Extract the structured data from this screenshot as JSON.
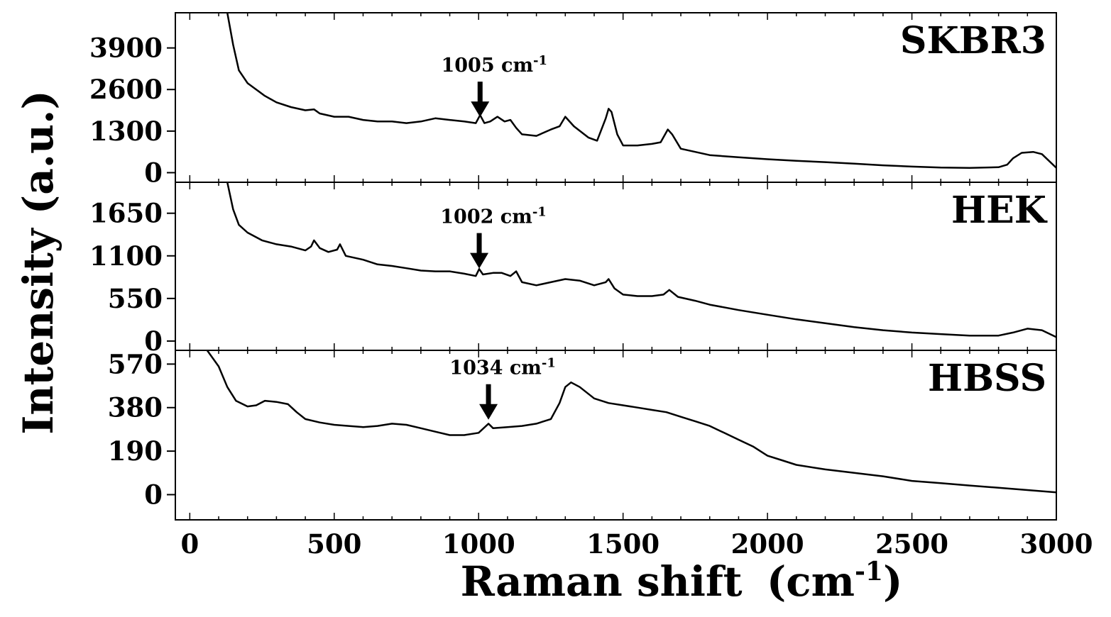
{
  "chart_data": {
    "type": "line",
    "xlabel": "Raman shift",
    "xlabel_unit_base": "(cm",
    "xlabel_unit_sup": "-1",
    "xlabel_unit_close": ")",
    "ylabel": "Intensity (a.u.)",
    "xlim": [
      -50,
      3000
    ],
    "xticks": [
      0,
      500,
      1000,
      1500,
      2000,
      2500,
      3000
    ],
    "line_color": "#000000",
    "grid": false,
    "legend": "none",
    "panels": [
      {
        "name": "SKBR3",
        "ylim": [
          -300,
          5000
        ],
        "yticks": [
          0,
          1300,
          2600,
          3900
        ],
        "annotation": {
          "x": 1005,
          "y": 1650,
          "text": "1005 cm",
          "sup": "-1"
        },
        "series": [
          {
            "x": 130,
            "y": 5000
          },
          {
            "x": 150,
            "y": 4000
          },
          {
            "x": 170,
            "y": 3200
          },
          {
            "x": 200,
            "y": 2800
          },
          {
            "x": 230,
            "y": 2600
          },
          {
            "x": 260,
            "y": 2400
          },
          {
            "x": 300,
            "y": 2200
          },
          {
            "x": 350,
            "y": 2050
          },
          {
            "x": 400,
            "y": 1950
          },
          {
            "x": 430,
            "y": 1980
          },
          {
            "x": 450,
            "y": 1850
          },
          {
            "x": 500,
            "y": 1750
          },
          {
            "x": 550,
            "y": 1750
          },
          {
            "x": 600,
            "y": 1650
          },
          {
            "x": 650,
            "y": 1600
          },
          {
            "x": 700,
            "y": 1600
          },
          {
            "x": 750,
            "y": 1550
          },
          {
            "x": 800,
            "y": 1600
          },
          {
            "x": 850,
            "y": 1700
          },
          {
            "x": 900,
            "y": 1650
          },
          {
            "x": 950,
            "y": 1600
          },
          {
            "x": 990,
            "y": 1550
          },
          {
            "x": 1005,
            "y": 1800
          },
          {
            "x": 1020,
            "y": 1550
          },
          {
            "x": 1040,
            "y": 1600
          },
          {
            "x": 1065,
            "y": 1750
          },
          {
            "x": 1090,
            "y": 1600
          },
          {
            "x": 1110,
            "y": 1650
          },
          {
            "x": 1130,
            "y": 1400
          },
          {
            "x": 1150,
            "y": 1200
          },
          {
            "x": 1200,
            "y": 1150
          },
          {
            "x": 1250,
            "y": 1350
          },
          {
            "x": 1280,
            "y": 1450
          },
          {
            "x": 1300,
            "y": 1750
          },
          {
            "x": 1330,
            "y": 1450
          },
          {
            "x": 1380,
            "y": 1100
          },
          {
            "x": 1410,
            "y": 1000
          },
          {
            "x": 1440,
            "y": 1700
          },
          {
            "x": 1450,
            "y": 2000
          },
          {
            "x": 1460,
            "y": 1900
          },
          {
            "x": 1480,
            "y": 1200
          },
          {
            "x": 1500,
            "y": 850
          },
          {
            "x": 1550,
            "y": 850
          },
          {
            "x": 1600,
            "y": 900
          },
          {
            "x": 1630,
            "y": 950
          },
          {
            "x": 1655,
            "y": 1350
          },
          {
            "x": 1670,
            "y": 1200
          },
          {
            "x": 1700,
            "y": 750
          },
          {
            "x": 1750,
            "y": 650
          },
          {
            "x": 1800,
            "y": 550
          },
          {
            "x": 1900,
            "y": 480
          },
          {
            "x": 2000,
            "y": 420
          },
          {
            "x": 2100,
            "y": 370
          },
          {
            "x": 2200,
            "y": 330
          },
          {
            "x": 2300,
            "y": 280
          },
          {
            "x": 2400,
            "y": 230
          },
          {
            "x": 2500,
            "y": 190
          },
          {
            "x": 2600,
            "y": 160
          },
          {
            "x": 2700,
            "y": 150
          },
          {
            "x": 2800,
            "y": 170
          },
          {
            "x": 2830,
            "y": 250
          },
          {
            "x": 2850,
            "y": 450
          },
          {
            "x": 2880,
            "y": 620
          },
          {
            "x": 2920,
            "y": 650
          },
          {
            "x": 2950,
            "y": 580
          },
          {
            "x": 3000,
            "y": 150
          }
        ]
      },
      {
        "name": "HEK",
        "ylim": [
          -120,
          2050
        ],
        "yticks": [
          0,
          550,
          1100,
          1650
        ],
        "annotation": {
          "x": 1002,
          "y": 900,
          "text": "1002 cm",
          "sup": "-1"
        },
        "series": [
          {
            "x": 130,
            "y": 2050
          },
          {
            "x": 150,
            "y": 1700
          },
          {
            "x": 170,
            "y": 1500
          },
          {
            "x": 200,
            "y": 1400
          },
          {
            "x": 250,
            "y": 1300
          },
          {
            "x": 300,
            "y": 1250
          },
          {
            "x": 350,
            "y": 1220
          },
          {
            "x": 400,
            "y": 1170
          },
          {
            "x": 420,
            "y": 1220
          },
          {
            "x": 430,
            "y": 1300
          },
          {
            "x": 450,
            "y": 1200
          },
          {
            "x": 480,
            "y": 1150
          },
          {
            "x": 510,
            "y": 1180
          },
          {
            "x": 520,
            "y": 1250
          },
          {
            "x": 540,
            "y": 1100
          },
          {
            "x": 600,
            "y": 1050
          },
          {
            "x": 650,
            "y": 990
          },
          {
            "x": 700,
            "y": 970
          },
          {
            "x": 750,
            "y": 940
          },
          {
            "x": 800,
            "y": 910
          },
          {
            "x": 850,
            "y": 900
          },
          {
            "x": 900,
            "y": 900
          },
          {
            "x": 950,
            "y": 870
          },
          {
            "x": 990,
            "y": 840
          },
          {
            "x": 1002,
            "y": 930
          },
          {
            "x": 1015,
            "y": 860
          },
          {
            "x": 1050,
            "y": 880
          },
          {
            "x": 1080,
            "y": 880
          },
          {
            "x": 1110,
            "y": 840
          },
          {
            "x": 1130,
            "y": 900
          },
          {
            "x": 1150,
            "y": 760
          },
          {
            "x": 1200,
            "y": 720
          },
          {
            "x": 1250,
            "y": 760
          },
          {
            "x": 1300,
            "y": 800
          },
          {
            "x": 1350,
            "y": 780
          },
          {
            "x": 1400,
            "y": 720
          },
          {
            "x": 1440,
            "y": 760
          },
          {
            "x": 1450,
            "y": 800
          },
          {
            "x": 1470,
            "y": 680
          },
          {
            "x": 1500,
            "y": 600
          },
          {
            "x": 1550,
            "y": 580
          },
          {
            "x": 1600,
            "y": 580
          },
          {
            "x": 1640,
            "y": 600
          },
          {
            "x": 1660,
            "y": 660
          },
          {
            "x": 1690,
            "y": 570
          },
          {
            "x": 1750,
            "y": 520
          },
          {
            "x": 1800,
            "y": 470
          },
          {
            "x": 1900,
            "y": 400
          },
          {
            "x": 2000,
            "y": 340
          },
          {
            "x": 2100,
            "y": 280
          },
          {
            "x": 2200,
            "y": 230
          },
          {
            "x": 2300,
            "y": 180
          },
          {
            "x": 2400,
            "y": 140
          },
          {
            "x": 2500,
            "y": 110
          },
          {
            "x": 2600,
            "y": 90
          },
          {
            "x": 2700,
            "y": 70
          },
          {
            "x": 2800,
            "y": 70
          },
          {
            "x": 2850,
            "y": 110
          },
          {
            "x": 2900,
            "y": 160
          },
          {
            "x": 2950,
            "y": 140
          },
          {
            "x": 3000,
            "y": 50
          }
        ]
      },
      {
        "name": "HBSS",
        "ylim": [
          -110,
          630
        ],
        "yticks": [
          0,
          190,
          380,
          570
        ],
        "annotation": {
          "x": 1034,
          "y": 315,
          "text": "1034 cm",
          "sup": "-1"
        },
        "series": [
          {
            "x": 60,
            "y": 630
          },
          {
            "x": 100,
            "y": 560
          },
          {
            "x": 130,
            "y": 470
          },
          {
            "x": 160,
            "y": 410
          },
          {
            "x": 200,
            "y": 385
          },
          {
            "x": 230,
            "y": 390
          },
          {
            "x": 260,
            "y": 410
          },
          {
            "x": 300,
            "y": 405
          },
          {
            "x": 340,
            "y": 395
          },
          {
            "x": 370,
            "y": 360
          },
          {
            "x": 400,
            "y": 330
          },
          {
            "x": 450,
            "y": 315
          },
          {
            "x": 500,
            "y": 305
          },
          {
            "x": 550,
            "y": 300
          },
          {
            "x": 600,
            "y": 295
          },
          {
            "x": 650,
            "y": 300
          },
          {
            "x": 700,
            "y": 310
          },
          {
            "x": 750,
            "y": 305
          },
          {
            "x": 800,
            "y": 290
          },
          {
            "x": 850,
            "y": 275
          },
          {
            "x": 900,
            "y": 260
          },
          {
            "x": 950,
            "y": 260
          },
          {
            "x": 1000,
            "y": 270
          },
          {
            "x": 1034,
            "y": 310
          },
          {
            "x": 1050,
            "y": 290
          },
          {
            "x": 1100,
            "y": 295
          },
          {
            "x": 1150,
            "y": 300
          },
          {
            "x": 1200,
            "y": 310
          },
          {
            "x": 1250,
            "y": 330
          },
          {
            "x": 1280,
            "y": 400
          },
          {
            "x": 1300,
            "y": 470
          },
          {
            "x": 1320,
            "y": 490
          },
          {
            "x": 1350,
            "y": 470
          },
          {
            "x": 1400,
            "y": 420
          },
          {
            "x": 1450,
            "y": 400
          },
          {
            "x": 1500,
            "y": 390
          },
          {
            "x": 1550,
            "y": 380
          },
          {
            "x": 1600,
            "y": 370
          },
          {
            "x": 1650,
            "y": 360
          },
          {
            "x": 1700,
            "y": 340
          },
          {
            "x": 1750,
            "y": 320
          },
          {
            "x": 1800,
            "y": 300
          },
          {
            "x": 1850,
            "y": 270
          },
          {
            "x": 1900,
            "y": 240
          },
          {
            "x": 1950,
            "y": 210
          },
          {
            "x": 2000,
            "y": 170
          },
          {
            "x": 2050,
            "y": 150
          },
          {
            "x": 2100,
            "y": 130
          },
          {
            "x": 2200,
            "y": 110
          },
          {
            "x": 2300,
            "y": 95
          },
          {
            "x": 2400,
            "y": 80
          },
          {
            "x": 2500,
            "y": 60
          },
          {
            "x": 2600,
            "y": 50
          },
          {
            "x": 2700,
            "y": 40
          },
          {
            "x": 2800,
            "y": 30
          },
          {
            "x": 2900,
            "y": 20
          },
          {
            "x": 3000,
            "y": 10
          }
        ]
      }
    ]
  }
}
